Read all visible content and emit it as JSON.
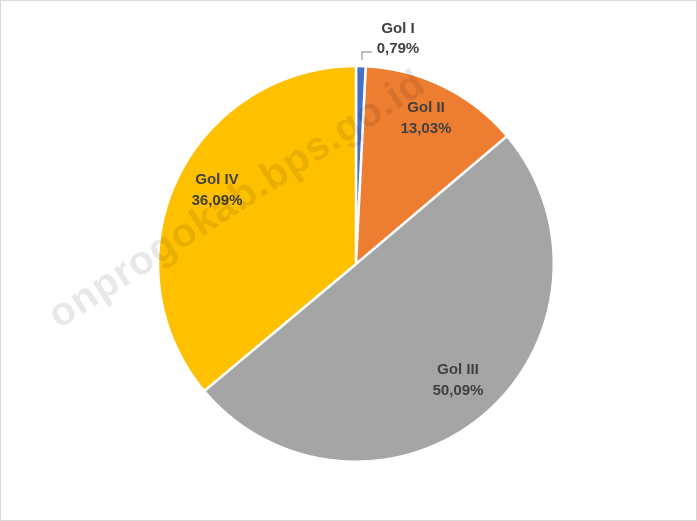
{
  "chart_data": {
    "type": "pie",
    "start_angle_deg": 0,
    "direction": "clockwise",
    "slices": [
      {
        "name": "Gol I",
        "value": 0.79,
        "label": "0,79%",
        "color": "#4472C4"
      },
      {
        "name": "Gol II",
        "value": 13.03,
        "label": "13,03%",
        "color": "#ED7D31"
      },
      {
        "name": "Gol III",
        "value": 50.09,
        "label": "50,09%",
        "color": "#A5A5A5"
      },
      {
        "name": "Gol IV",
        "value": 36.09,
        "label": "36,09%",
        "color": "#FFC000"
      }
    ]
  },
  "watermark": "onprogokab.bps.go.id"
}
